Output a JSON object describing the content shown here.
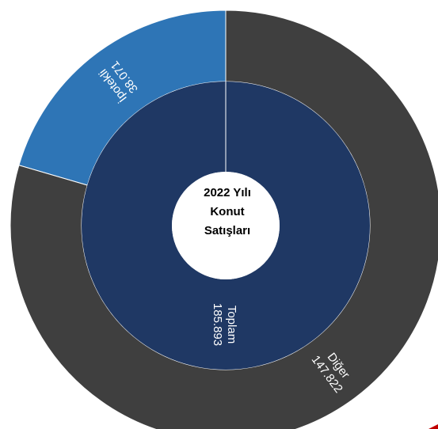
{
  "chart_data": {
    "type": "sunburst",
    "title_lines": [
      "2022 Yılı",
      "Konut",
      "Satışları"
    ],
    "inner": [
      {
        "name": "Toplam",
        "value": 185893,
        "value_label": "185.893",
        "color": "#1f3864"
      }
    ],
    "outer": [
      {
        "name": "İpotekli",
        "value": 38071,
        "value_label": "38.071",
        "color": "#2e75b6"
      },
      {
        "name": "Diğer",
        "value": 147822,
        "value_label": "147.822",
        "color": "#3f3f3f"
      }
    ]
  },
  "colors": {
    "ring_divider": "#ffffff",
    "corner_mark": "#c00000"
  }
}
